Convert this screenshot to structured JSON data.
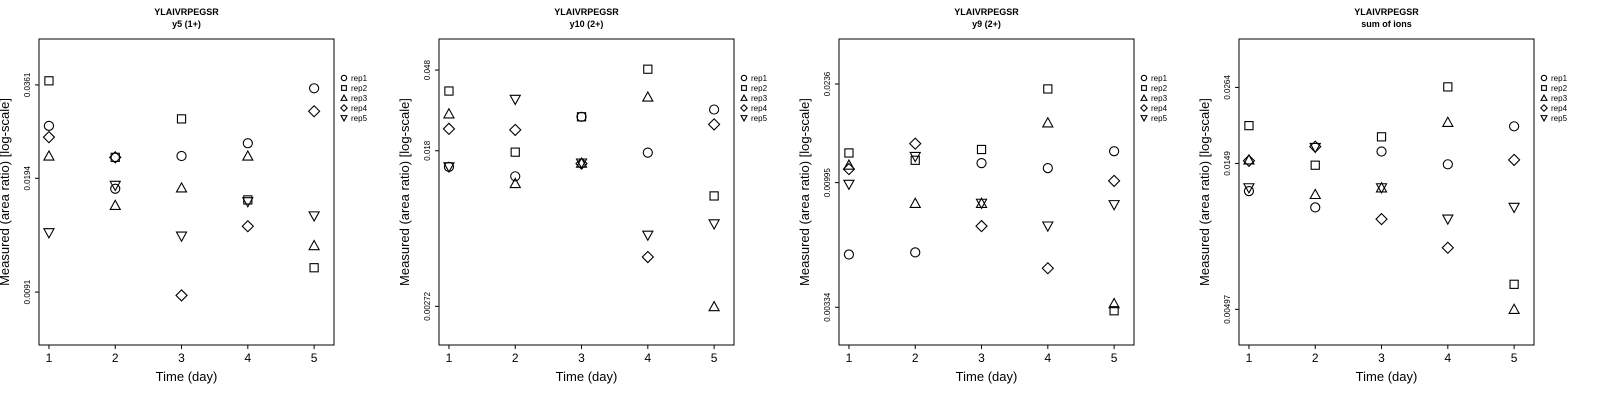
{
  "chart_data": [
    {
      "type": "scatter",
      "title": "YLAIVRPEGSR",
      "subtitle": "y5 (1+)",
      "xlabel": "Time (day)",
      "ylabel": "Measured (area ratio) [log-scale]",
      "log_y": true,
      "xlim": [
        0.85,
        5.3
      ],
      "ylim": [
        0.0064,
        0.049
      ],
      "x_ticks": [
        1,
        2,
        3,
        4,
        5
      ],
      "y_ticks": [
        0.0361,
        0.0194,
        0.0091
      ],
      "y_tick_labels": [
        "0.0361",
        "0.0194",
        "0.0091"
      ],
      "legend_position": "right",
      "series": [
        {
          "name": "rep1",
          "marker": "circle",
          "x": [
            1,
            2,
            3,
            4,
            5
          ],
          "y": [
            0.0275,
            0.0181,
            0.0225,
            0.0245,
            0.0353
          ]
        },
        {
          "name": "rep2",
          "marker": "square",
          "x": [
            1,
            2,
            3,
            4,
            5
          ],
          "y": [
            0.0371,
            0.0223,
            0.0288,
            0.0168,
            0.0107
          ]
        },
        {
          "name": "rep3",
          "marker": "triangle-up",
          "x": [
            1,
            2,
            3,
            4,
            5
          ],
          "y": [
            0.0225,
            0.0162,
            0.0182,
            0.0225,
            0.0124
          ]
        },
        {
          "name": "rep4",
          "marker": "diamond",
          "x": [
            1,
            2,
            3,
            4,
            5
          ],
          "y": [
            0.0255,
            0.0223,
            0.0089,
            0.0141,
            0.0303
          ]
        },
        {
          "name": "rep5",
          "marker": "triangle-down",
          "x": [
            1,
            2,
            3,
            4,
            5
          ],
          "y": [
            0.0135,
            0.0185,
            0.0132,
            0.0166,
            0.0151
          ]
        }
      ]
    },
    {
      "type": "scatter",
      "title": "YLAIVRPEGSR",
      "subtitle": "y10 (2+)",
      "xlabel": "Time (day)",
      "ylabel": "Measured (area ratio) [log-scale]",
      "log_y": true,
      "xlim": [
        0.85,
        5.3
      ],
      "ylim": [
        0.0017,
        0.07
      ],
      "x_ticks": [
        1,
        2,
        3,
        4,
        5
      ],
      "y_ticks": [
        0.048,
        0.018,
        0.00272
      ],
      "y_tick_labels": [
        "0.048",
        "0.018",
        "0.00272"
      ],
      "legend_position": "right",
      "series": [
        {
          "name": "rep1",
          "marker": "circle",
          "x": [
            1,
            2,
            3,
            4,
            5
          ],
          "y": [
            0.0148,
            0.0132,
            0.0272,
            0.0176,
            0.0297
          ]
        },
        {
          "name": "rep2",
          "marker": "square",
          "x": [
            1,
            2,
            3,
            4,
            5
          ],
          "y": [
            0.0372,
            0.0177,
            0.0272,
            0.0485,
            0.0104
          ]
        },
        {
          "name": "rep3",
          "marker": "triangle-up",
          "x": [
            1,
            2,
            3,
            4,
            5
          ],
          "y": [
            0.0282,
            0.0121,
            0.0155,
            0.0346,
            0.00271
          ]
        },
        {
          "name": "rep4",
          "marker": "diamond",
          "x": [
            1,
            2,
            3,
            4,
            5
          ],
          "y": [
            0.0235,
            0.0232,
            0.0154,
            0.00495,
            0.0248
          ]
        },
        {
          "name": "rep5",
          "marker": "triangle-down",
          "x": [
            1,
            2,
            3,
            4,
            5
          ],
          "y": [
            0.0148,
            0.0336,
            0.0155,
            0.00645,
            0.0074
          ]
        }
      ]
    },
    {
      "type": "scatter",
      "title": "YLAIVRPEGSR",
      "subtitle": "y9 (2+)",
      "xlabel": "Time (day)",
      "ylabel": "Measured (area ratio) [log-scale]",
      "log_y": true,
      "xlim": [
        0.85,
        5.3
      ],
      "ylim": [
        0.0024,
        0.035
      ],
      "x_ticks": [
        1,
        2,
        3,
        4,
        5
      ],
      "y_ticks": [
        0.0236,
        0.00995,
        0.00334
      ],
      "y_tick_labels": [
        "0.0236",
        "0.00995",
        "0.00334"
      ],
      "legend_position": "right",
      "series": [
        {
          "name": "rep1",
          "marker": "circle",
          "x": [
            1,
            2,
            3,
            4,
            5
          ],
          "y": [
            0.0053,
            0.0054,
            0.0118,
            0.0113,
            0.0131
          ]
        },
        {
          "name": "rep2",
          "marker": "square",
          "x": [
            1,
            2,
            3,
            4,
            5
          ],
          "y": [
            0.0129,
            0.0121,
            0.0133,
            0.0226,
            0.00324
          ]
        },
        {
          "name": "rep3",
          "marker": "triangle-up",
          "x": [
            1,
            2,
            3,
            4,
            5
          ],
          "y": [
            0.0116,
            0.0083,
            0.0083,
            0.0168,
            0.00345
          ]
        },
        {
          "name": "rep4",
          "marker": "diamond",
          "x": [
            1,
            2,
            3,
            4,
            5
          ],
          "y": [
            0.0112,
            0.014,
            0.0068,
            0.0047,
            0.0101
          ]
        },
        {
          "name": "rep5",
          "marker": "triangle-down",
          "x": [
            1,
            2,
            3,
            4,
            5
          ],
          "y": [
            0.0098,
            0.0125,
            0.0083,
            0.0068,
            0.0082
          ]
        }
      ]
    },
    {
      "type": "scatter",
      "title": "YLAIVRPEGSR",
      "subtitle": "sum of ions",
      "xlabel": "Time (day)",
      "ylabel": "Measured (area ratio) [log-scale]",
      "log_y": true,
      "xlim": [
        0.85,
        5.3
      ],
      "ylim": [
        0.0038,
        0.038
      ],
      "x_ticks": [
        1,
        2,
        3,
        4,
        5
      ],
      "y_ticks": [
        0.0264,
        0.0149,
        0.00497
      ],
      "y_tick_labels": [
        "0.0264",
        "0.0149",
        "0.00497"
      ],
      "legend_position": "right",
      "series": [
        {
          "name": "rep1",
          "marker": "circle",
          "x": [
            1,
            2,
            3,
            4,
            5
          ],
          "y": [
            0.0121,
            0.0107,
            0.0163,
            0.0148,
            0.0197
          ]
        },
        {
          "name": "rep2",
          "marker": "square",
          "x": [
            1,
            2,
            3,
            4,
            5
          ],
          "y": [
            0.0198,
            0.0147,
            0.0182,
            0.0265,
            0.006
          ]
        },
        {
          "name": "rep3",
          "marker": "triangle-up",
          "x": [
            1,
            2,
            3,
            4,
            5
          ],
          "y": [
            0.0153,
            0.0118,
            0.0124,
            0.0203,
            0.00497
          ]
        },
        {
          "name": "rep4",
          "marker": "diamond",
          "x": [
            1,
            2,
            3,
            4,
            5
          ],
          "y": [
            0.0152,
            0.0169,
            0.0098,
            0.0079,
            0.0153
          ]
        },
        {
          "name": "rep5",
          "marker": "triangle-down",
          "x": [
            1,
            2,
            3,
            4,
            5
          ],
          "y": [
            0.0124,
            0.0168,
            0.0124,
            0.0098,
            0.0107
          ]
        }
      ]
    }
  ]
}
